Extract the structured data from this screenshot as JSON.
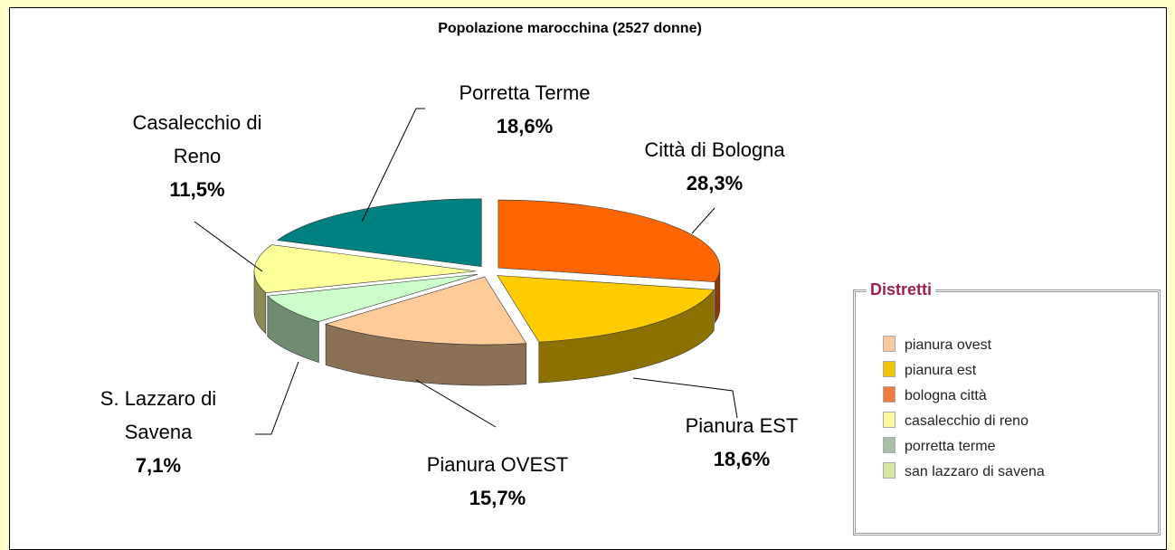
{
  "chart_data": {
    "type": "pie",
    "title": "Popolazione marocchina (2527 donne)",
    "categories": [
      "Città di Bologna",
      "Pianura EST",
      "Pianura OVEST",
      "S. Lazzaro di Savena",
      "Casalecchio di Reno",
      "Porretta Terme"
    ],
    "values": [
      28.3,
      18.6,
      15.7,
      7.1,
      11.5,
      18.6
    ],
    "value_labels": [
      "28,3%",
      "18,6%",
      "15,7%",
      "7,1%",
      "11,5%",
      "18,6%"
    ],
    "colors": [
      "#ff6600",
      "#ffcc00",
      "#ffcc99",
      "#ccffcc",
      "#ffff99",
      "#008080"
    ],
    "legend": {
      "title": "Distretti",
      "items": [
        {
          "label": "pianura ovest",
          "color": "#f9c89b"
        },
        {
          "label": "pianura est",
          "color": "#f5c400"
        },
        {
          "label": "bologna città",
          "color": "#f07a3c"
        },
        {
          "label": "casalecchio di reno",
          "color": "#fdf7a0"
        },
        {
          "label": "porretta terme",
          "color": "#a8c0a8"
        },
        {
          "label": "san lazzaro di savena",
          "color": "#d8eaa0"
        }
      ]
    }
  }
}
